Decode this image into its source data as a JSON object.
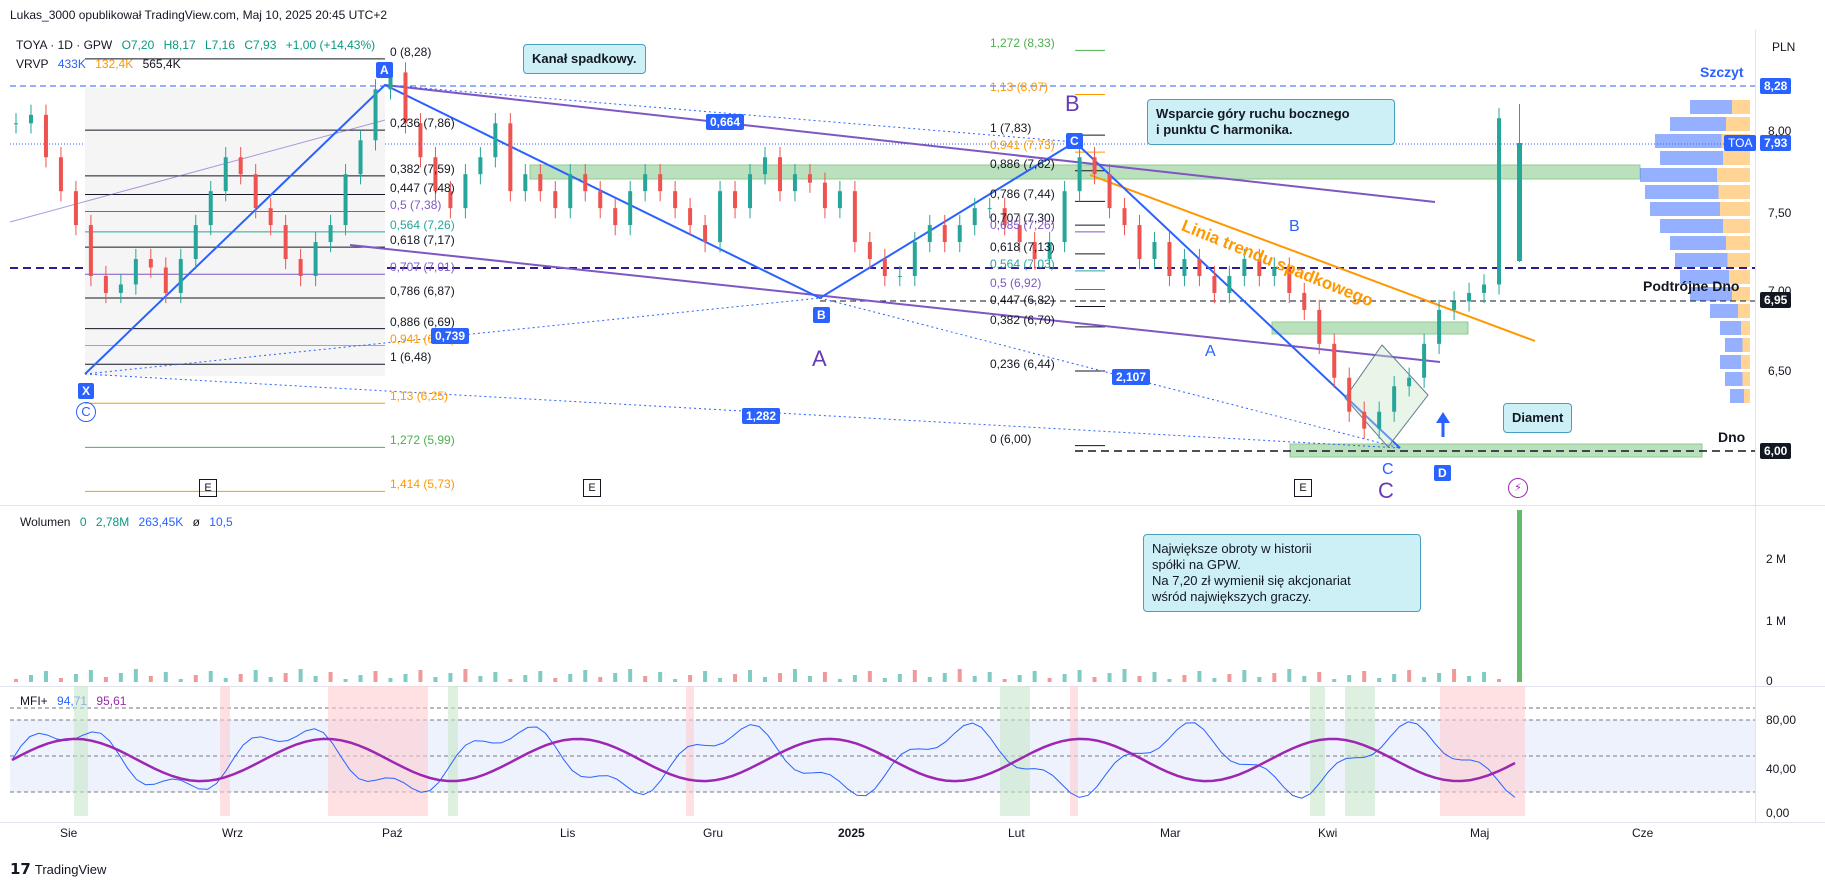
{
  "header": {
    "publisher": "Lukas_3000 opublikował TradingView.com, Maj 10, 2025 20:45 UTC+2"
  },
  "symbol_legend": {
    "symbol": "TOYA · 1D · GPW",
    "open": "O7,20",
    "high": "H8,17",
    "low": "L7,16",
    "close": "C7,93",
    "change": "+1,00 (+14,43%)"
  },
  "vrvp_legend": {
    "name": "VRVP",
    "v1": "433K",
    "v2": "132,4K",
    "v3": "565,4K"
  },
  "volume_legend": {
    "name": "Wolumen",
    "v0": "0",
    "v1": "2,78M",
    "v2": "263,45K",
    "v3": "ø",
    "v4": "10,5"
  },
  "mfi_legend": {
    "name": "MFI+",
    "v1": "94,71",
    "v2": "95,61"
  },
  "currency": "PLN",
  "footer_brand": "TradingView",
  "colors": {
    "up": "#26a69a",
    "down": "#ef5350",
    "blue": "#2962ff",
    "purple": "#7e57c2",
    "orange": "#ff9800",
    "green_zone": "#a5d6a7"
  },
  "callouts": {
    "channel": "Kanał spadkowy.",
    "support": "Wsparcie góry ruchu bocznego\ni punktu C harmonika.",
    "diamond": "Diament",
    "volume": "Największe obroty w historii\nspółki na GPW.\nNa 7,20 zł wymienił się akcjonariat\nwśród największych graczy."
  },
  "labels": {
    "szczyt": "Szczyt",
    "podtrojne_dno": "Podtrójne Dno",
    "dno": "Dno",
    "trend": "Linia trendu spadkowego",
    "point_A1": "A",
    "point_X": "X",
    "point_C1": "C",
    "point_B1": "B",
    "point_A2": "A",
    "point_B2": "B",
    "point_C2": "C",
    "point_D": "D",
    "wave_B": "B",
    "wave_A": "A",
    "wave_C": "C",
    "small_B": "B",
    "small_A": "A",
    "small_C": "C",
    "ratio_1": "0,664",
    "ratio_2": "0,739",
    "ratio_3": "1,282",
    "ratio_4": "2,107",
    "e1": "E",
    "e2": "E",
    "e3": "E",
    "lightning": "⚡"
  },
  "price_tags": {
    "p828": "8,28",
    "p793_sym": "TOA",
    "p793": "7,93",
    "p695": "6,95",
    "p600": "6,00"
  },
  "price_axis": [
    "8,00",
    "7,50",
    "7,00",
    "6,50"
  ],
  "volume_axis": [
    "2 M",
    "1 M",
    "0"
  ],
  "mfi_axis": [
    "80,00",
    "40,00",
    "0,00"
  ],
  "time_axis": [
    "Sie",
    "Wrz",
    "Paź",
    "Lis",
    "Gru",
    "2025",
    "Lut",
    "Mar",
    "Kwi",
    "Maj",
    "Cze"
  ],
  "fib_left": [
    "0 (8,28)",
    "0,236 (7,86)",
    "0,382 (7,59)",
    "0,447 (7,48)",
    "0,5 (7,38)",
    "0,564 (7,26)",
    "0,618 (7,17)",
    "0,707 (7,01)",
    "0,786 (6,87)",
    "0,886 (6,69)",
    "0,941 (6,59)",
    "1 (6,48)",
    "1,13 (6,25)",
    "1,272 (5,99)",
    "1,414 (5,73)"
  ],
  "fib_right": [
    "1,272 (8,33)",
    "1,13 (8,07)",
    "1 (7,83)",
    "0,941 (7,73)",
    "0,886 (7,62)",
    "0,786 (7,44)",
    "0,707 (7,30)",
    "0,685 (7,26)",
    "0,618 (7,13)",
    "0,564 (7,03)",
    "0,5 (6,92)",
    "0,447 (6,82)",
    "0,382 (6,70)",
    "0,236 (6,44)",
    "0 (6,00)"
  ],
  "chart_data": {
    "type": "candlestick",
    "symbol": "TOYA",
    "interval": "1D",
    "currency": "PLN",
    "y_range": [
      5.65,
      8.45
    ],
    "levels": {
      "szczyt": 8.28,
      "podtrojne_dno": 6.95,
      "dno": 6.0,
      "last": 7.93,
      "dashed_purple": 7.15
    },
    "approx_closes": [
      7.9,
      7.95,
      7.7,
      7.5,
      7.3,
      7.0,
      6.9,
      6.95,
      7.1,
      7.05,
      6.9,
      7.1,
      7.3,
      7.5,
      7.7,
      7.6,
      7.4,
      7.3,
      7.1,
      7.0,
      7.2,
      7.3,
      7.6,
      7.8,
      8.1,
      8.2,
      7.9,
      7.7,
      7.5,
      7.4,
      7.6,
      7.7,
      7.9,
      7.5,
      7.6,
      7.5,
      7.4,
      7.6,
      7.5,
      7.4,
      7.3,
      7.5,
      7.6,
      7.5,
      7.4,
      7.3,
      7.2,
      7.5,
      7.4,
      7.6,
      7.7,
      7.5,
      7.6,
      7.55,
      7.4,
      7.5,
      7.2,
      7.1,
      7.0,
      7.0,
      7.2,
      7.3,
      7.2,
      7.3,
      7.4,
      7.4,
      7.3,
      7.2,
      7.1,
      7.2,
      7.5,
      7.7,
      7.6,
      7.4,
      7.3,
      7.1,
      7.2,
      7.0,
      7.1,
      7.0,
      6.9,
      7.0,
      7.1,
      7.0,
      7.05,
      6.9,
      6.8,
      6.6,
      6.4,
      6.2,
      6.1,
      6.2,
      6.35,
      6.4,
      6.6,
      6.8,
      6.85,
      6.9,
      6.95,
      7.93
    ],
    "volume_peak": "2,78M",
    "mfi_last": [
      94.71,
      95.61
    ],
    "mfi_levels": [
      80,
      40,
      20
    ]
  }
}
